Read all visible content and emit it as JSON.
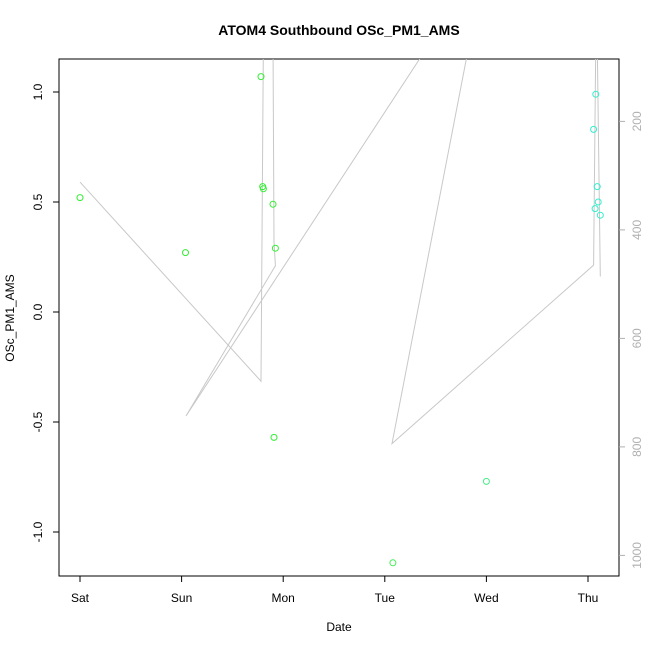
{
  "chart_data": {
    "type": "scatter",
    "title": "ATOM4 Southbound OSc_PM1_AMS",
    "xlabel": "Date",
    "ylabel": "OSc_PM1_AMS",
    "x_axis": {
      "type": "date",
      "ticks": [
        "Sat",
        "Sun",
        "Mon",
        "Tue",
        "Wed",
        "Thu"
      ],
      "range": [
        "Sat 00:00",
        "Thu 08:00"
      ]
    },
    "ylim": [
      -1.2,
      1.15
    ],
    "y_ticks": [
      -1.0,
      -0.5,
      0.0,
      0.5,
      1.0
    ],
    "y2": {
      "ticks": [
        200,
        400,
        600,
        800,
        1000
      ],
      "range": [
        1038,
        85
      ],
      "reversed": true,
      "color": "#b0b0b0"
    },
    "grid": false,
    "points": [
      {
        "x": "Sat 00:00",
        "y": 0.52
      },
      {
        "x": "Sun 00:55",
        "y": 0.27
      },
      {
        "x": "Sun 18:45",
        "y": 1.07
      },
      {
        "x": "Sun 19:10",
        "y": 0.57
      },
      {
        "x": "Sun 19:20",
        "y": 0.56
      },
      {
        "x": "Sun 21:35",
        "y": 0.49
      },
      {
        "x": "Sun 21:50",
        "y": -0.57
      },
      {
        "x": "Sun 22:10",
        "y": 0.29
      },
      {
        "x": "Tue 01:55",
        "y": -1.14
      },
      {
        "x": "Wed 00:00",
        "y": -0.77
      },
      {
        "x": "Thu 01:20",
        "y": 0.83
      },
      {
        "x": "Thu 01:50",
        "y": 0.99
      },
      {
        "x": "Thu 01:40",
        "y": 0.47
      },
      {
        "x": "Thu 02:10",
        "y": 0.57
      },
      {
        "x": "Thu 02:25",
        "y": 0.5
      },
      {
        "x": "Thu 02:55",
        "y": 0.44
      }
    ],
    "point_colors": [
      "#33ee33",
      "#33ee33",
      "#33ee33",
      "#33ee33",
      "#33ee33",
      "#33ee33",
      "#33ee33",
      "#33ee33",
      "#44ee55",
      "#44ee88",
      "#33eecc",
      "#33eecc",
      "#33eecc",
      "#33eecc",
      "#33eecc",
      "#33eecc"
    ],
    "line_series": {
      "color": "#c8c8c8",
      "points": [
        {
          "x": "Sat 00:00",
          "y2": 312
        },
        {
          "x": "Sun 18:45",
          "y2": 679
        },
        {
          "x": "Sun 19:20",
          "y2": 0
        },
        {
          "x": "Sun 21:35",
          "y2": 0
        },
        {
          "x": "Sun 21:50",
          "y2": 421
        },
        {
          "x": "Sun 22:10",
          "y2": 466
        },
        {
          "x": "Sun 01:10",
          "y2": 743
        },
        {
          "x": "Tue 10:00",
          "y2": 0
        },
        {
          "x": "Tue 20:10",
          "y2": 0
        },
        {
          "x": "Tue 02:10",
          "y2": 794
        },
        {
          "x": "Thu 01:20",
          "y2": 465
        },
        {
          "x": "Thu 01:50",
          "y2": 0
        },
        {
          "x": "Thu 02:10",
          "y2": 0
        },
        {
          "x": "Thu 02:55",
          "y2": 486
        }
      ]
    }
  }
}
